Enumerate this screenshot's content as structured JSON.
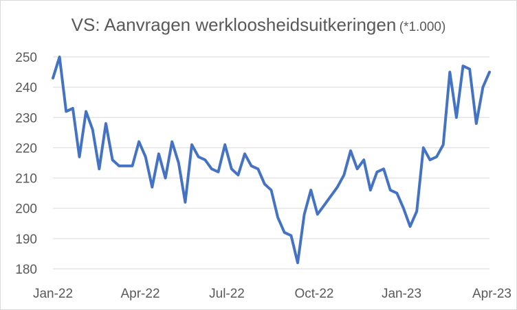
{
  "chart_data": {
    "type": "line",
    "title": "VS: Aanvragen werkloosheidsuitkeringen",
    "subtitle": "(*1.000)",
    "xlabel": "",
    "ylabel": "",
    "ylim": [
      180,
      250
    ],
    "y_ticks": [
      "180",
      "190",
      "200",
      "210",
      "220",
      "230",
      "240",
      "250"
    ],
    "x_ticks": [
      "Jan-22",
      "Apr-22",
      "Jul-22",
      "Oct-22",
      "Jan-23",
      "Apr-23"
    ],
    "grid": "horizontal",
    "legend": "none",
    "series_color": "#4472c4",
    "series": [
      {
        "values": [
          243,
          250,
          232,
          233,
          217,
          232,
          226,
          213,
          228,
          216,
          214,
          214,
          214,
          222,
          217,
          207,
          218,
          210,
          222,
          215,
          202,
          221,
          217,
          216,
          213,
          212,
          221,
          213,
          211,
          218,
          214,
          213,
          208,
          206,
          197,
          192,
          191,
          182,
          198,
          206,
          198,
          201,
          204,
          207,
          211,
          219,
          213,
          216,
          206,
          212,
          213,
          206,
          205,
          200,
          194,
          199,
          220,
          216,
          217,
          221,
          245,
          230,
          247,
          246,
          228,
          240,
          245
        ]
      }
    ]
  }
}
